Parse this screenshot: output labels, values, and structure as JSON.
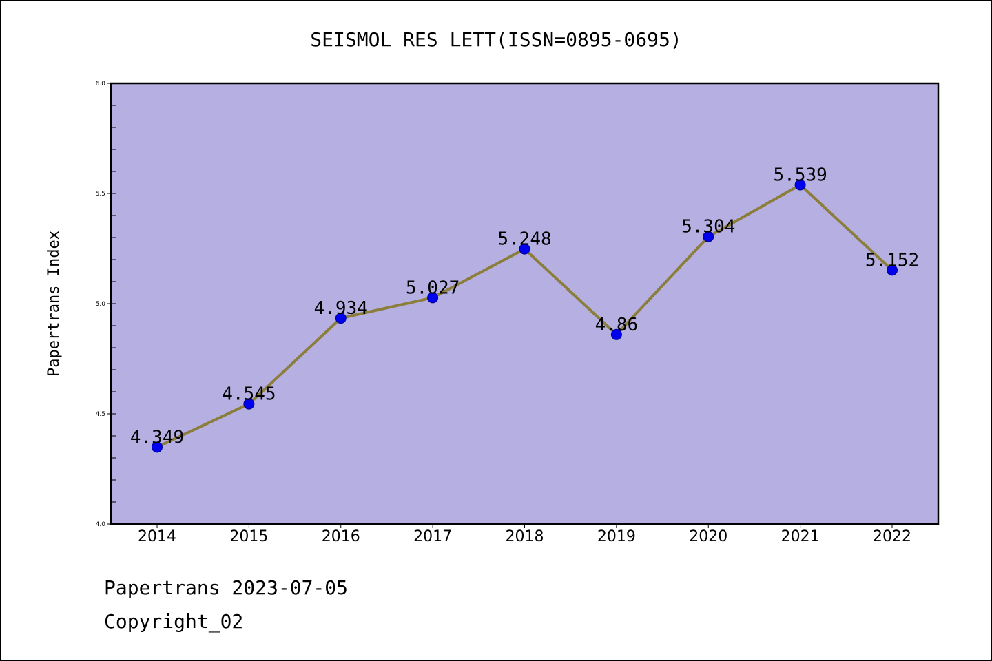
{
  "colors": {
    "plot_background": "#b5afe2",
    "line": "#8b7d3a",
    "marker": "#0000ee",
    "marker_edge": "#00008b",
    "axis": "#000000"
  },
  "chart_data": {
    "type": "line",
    "title": "SEISMOL RES LETT(ISSN=0895-0695)",
    "xlabel": "",
    "ylabel": "Papertrans Index",
    "categories": [
      "2014",
      "2015",
      "2016",
      "2017",
      "2018",
      "2019",
      "2020",
      "2021",
      "2022"
    ],
    "series": [
      {
        "values": [
          4.349,
          4.545,
          4.934,
          5.027,
          5.248,
          4.86,
          5.304,
          5.539,
          5.152
        ],
        "labels": [
          "4.349",
          "4.545",
          "4.934",
          "5.027",
          "5.248",
          "4.86",
          "5.304",
          "5.539",
          "5.152"
        ]
      }
    ],
    "ylim": [
      4.0,
      6.0
    ],
    "yticks": [
      "4.0",
      "4.5",
      "5.0",
      "5.5",
      "6.0"
    ],
    "y_minor_step": 0.1,
    "grid": false,
    "legend": "none"
  },
  "footer": {
    "date_line": "Papertrans 2023-07-05",
    "copyright_line": "Copyright_02"
  }
}
